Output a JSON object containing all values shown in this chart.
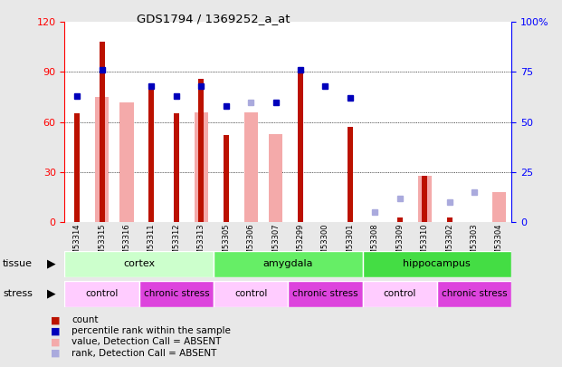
{
  "title": "GDS1794 / 1369252_a_at",
  "samples": [
    "GSM53314",
    "GSM53315",
    "GSM53316",
    "GSM53311",
    "GSM53312",
    "GSM53313",
    "GSM53305",
    "GSM53306",
    "GSM53307",
    "GSM53299",
    "GSM53300",
    "GSM53301",
    "GSM53308",
    "GSM53309",
    "GSM53310",
    "GSM53302",
    "GSM53303",
    "GSM53304"
  ],
  "count_values": [
    65,
    108,
    0,
    82,
    65,
    86,
    52,
    0,
    0,
    90,
    0,
    57,
    0,
    3,
    28,
    3,
    0,
    0
  ],
  "percentile_values": [
    63,
    76,
    0,
    68,
    63,
    68,
    58,
    0,
    60,
    76,
    68,
    62,
    0,
    0,
    0,
    0,
    0,
    0
  ],
  "absent_value_values": [
    0,
    75,
    72,
    0,
    0,
    66,
    0,
    66,
    53,
    0,
    0,
    0,
    0,
    0,
    28,
    0,
    0,
    18
  ],
  "absent_rank_values": [
    0,
    0,
    0,
    0,
    0,
    0,
    0,
    60,
    0,
    0,
    0,
    0,
    5,
    12,
    0,
    10,
    15,
    0
  ],
  "has_count": [
    true,
    true,
    false,
    true,
    true,
    true,
    true,
    false,
    false,
    true,
    false,
    true,
    false,
    true,
    true,
    true,
    false,
    false
  ],
  "has_percentile": [
    true,
    true,
    false,
    true,
    true,
    true,
    true,
    false,
    true,
    true,
    true,
    true,
    false,
    false,
    false,
    false,
    false,
    false
  ],
  "has_absent_value": [
    false,
    true,
    true,
    false,
    false,
    true,
    false,
    true,
    true,
    false,
    false,
    false,
    false,
    false,
    true,
    false,
    false,
    true
  ],
  "has_absent_rank": [
    false,
    false,
    false,
    false,
    false,
    false,
    false,
    true,
    false,
    false,
    false,
    false,
    true,
    true,
    false,
    true,
    true,
    false
  ],
  "tissue_groups": [
    {
      "label": "cortex",
      "start": 0,
      "end": 6,
      "color": "#ccffcc"
    },
    {
      "label": "amygdala",
      "start": 6,
      "end": 12,
      "color": "#66ee66"
    },
    {
      "label": "hippocampus",
      "start": 12,
      "end": 18,
      "color": "#44dd44"
    }
  ],
  "stress_groups": [
    {
      "label": "control",
      "start": 0,
      "end": 3,
      "color": "#ffccff"
    },
    {
      "label": "chronic stress",
      "start": 3,
      "end": 6,
      "color": "#dd44dd"
    },
    {
      "label": "control",
      "start": 6,
      "end": 9,
      "color": "#ffccff"
    },
    {
      "label": "chronic stress",
      "start": 9,
      "end": 12,
      "color": "#dd44dd"
    },
    {
      "label": "control",
      "start": 12,
      "end": 15,
      "color": "#ffccff"
    },
    {
      "label": "chronic stress",
      "start": 15,
      "end": 18,
      "color": "#dd44dd"
    }
  ],
  "ylim_left": [
    0,
    120
  ],
  "ylim_right": [
    0,
    100
  ],
  "yticks_left": [
    0,
    30,
    60,
    90,
    120
  ],
  "yticks_right": [
    0,
    25,
    50,
    75,
    100
  ],
  "count_color": "#bb1100",
  "percentile_color": "#0000bb",
  "absent_value_color": "#f4aaaa",
  "absent_rank_color": "#aaaadd",
  "bg_color": "#e8e8e8"
}
